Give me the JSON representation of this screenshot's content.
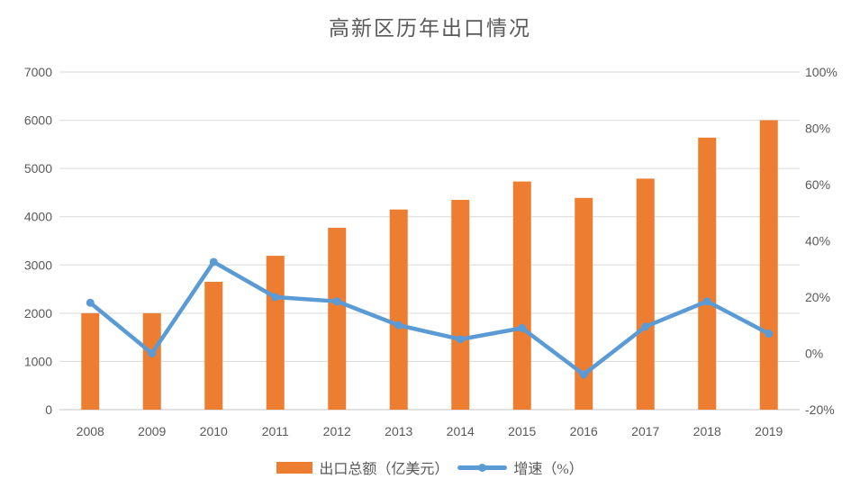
{
  "title": "高新区历年出口情况",
  "colors": {
    "bar": "#ED7D31",
    "line": "#5B9BD5",
    "marker": "#5B9BD5",
    "grid": "#D9D9D9",
    "axis_line": "#D9D9D9",
    "text": "#595959",
    "background": "#FFFFFF"
  },
  "chart_data": {
    "type": "combo-bar-line",
    "title": "高新区历年出口情况",
    "categories": [
      "2008",
      "2009",
      "2010",
      "2011",
      "2012",
      "2013",
      "2014",
      "2015",
      "2016",
      "2017",
      "2018",
      "2019"
    ],
    "series": [
      {
        "name": "出口总额（亿美元）",
        "type": "bar",
        "axis": "left",
        "color": "#ED7D31",
        "values": [
          2000,
          2000,
          2650,
          3190,
          3770,
          4150,
          4350,
          4730,
          4390,
          4790,
          5640,
          6000
        ]
      },
      {
        "name": "增速（%）",
        "type": "line",
        "axis": "right",
        "color": "#5B9BD5",
        "values": [
          18,
          0,
          32.5,
          20,
          18.5,
          10,
          5,
          9,
          -7.5,
          9.5,
          18.5,
          7
        ]
      }
    ],
    "left_axis": {
      "min": 0,
      "max": 7000,
      "step": 1000,
      "tick_labels": [
        "0",
        "1000",
        "2000",
        "3000",
        "4000",
        "5000",
        "6000",
        "7000"
      ]
    },
    "right_axis": {
      "min": -20,
      "max": 100,
      "step": 20,
      "tick_labels": [
        "-20%",
        "0%",
        "20%",
        "40%",
        "60%",
        "80%",
        "100%"
      ]
    },
    "grid": "horizontal",
    "legend_position": "bottom"
  }
}
